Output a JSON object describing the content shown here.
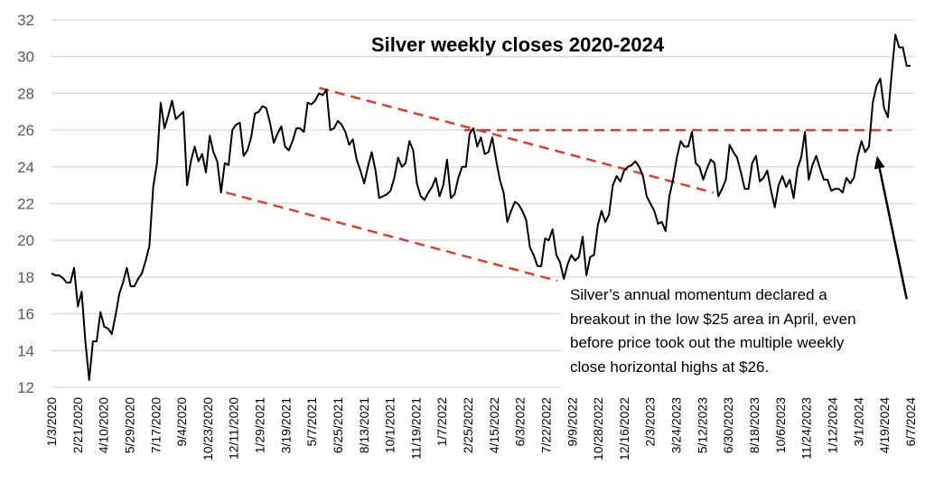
{
  "chart_data": {
    "type": "line",
    "title": "Silver weekly closes  2020-2024",
    "xlabel": "",
    "ylabel": "",
    "ylim": [
      12,
      32
    ],
    "yticks": [
      12,
      14,
      16,
      18,
      20,
      22,
      24,
      26,
      28,
      30,
      32
    ],
    "grid": true,
    "x_unit": "week index from 1/3/2020",
    "xlim": [
      0,
      232
    ],
    "xtick_labels": [
      "1/3/2020",
      "2/21/2020",
      "4/10/2020",
      "5/29/2020",
      "7/17/2020",
      "9/4/2020",
      "10/23/2020",
      "12/11/2020",
      "1/29/2021",
      "3/19/2021",
      "5/7/2021",
      "6/25/2021",
      "8/13/2021",
      "10/1/2021",
      "11/19/2021",
      "1/7/2022",
      "2/25/2022",
      "4/15/2022",
      "6/3/2022",
      "7/22/2022",
      "9/9/2022",
      "10/28/2022",
      "12/16/2022",
      "2/3/2023",
      "3/24/2023",
      "5/12/2023",
      "6/30/2023",
      "8/18/2023",
      "10/6/2023",
      "11/24/2023",
      "1/12/2024",
      "3/1/2024",
      "4/19/2024",
      "6/7/2024"
    ],
    "xtick_step_weeks": 7,
    "series": [
      {
        "name": "Silver weekly close",
        "color": "#000000",
        "values": [
          18.2,
          18.1,
          18.1,
          17.95,
          17.7,
          17.7,
          18.5,
          16.4,
          17.2,
          14.5,
          12.4,
          14.5,
          14.5,
          16.1,
          15.3,
          15.2,
          14.9,
          15.9,
          17.1,
          17.7,
          18.5,
          17.5,
          17.5,
          17.9,
          18.2,
          18.9,
          19.7,
          22.9,
          24.2,
          27.5,
          26.1,
          26.8,
          27.6,
          26.6,
          26.8,
          27.0,
          23.0,
          24.3,
          25.1,
          24.3,
          24.7,
          23.7,
          25.7,
          24.8,
          24.3,
          22.6,
          24.2,
          24.1,
          26.0,
          26.3,
          26.4,
          24.6,
          24.9,
          25.6,
          26.9,
          27.0,
          27.3,
          27.2,
          26.4,
          25.3,
          25.8,
          26.2,
          25.1,
          24.9,
          25.4,
          26.1,
          26.1,
          25.9,
          27.5,
          27.4,
          27.6,
          28.0,
          27.9,
          28.2,
          26.0,
          26.1,
          26.5,
          26.3,
          25.9,
          25.2,
          25.5,
          24.4,
          23.8,
          23.1,
          24.0,
          24.8,
          23.8,
          22.3,
          22.4,
          22.5,
          22.7,
          23.4,
          24.5,
          24.0,
          24.2,
          25.4,
          24.9,
          23.1,
          22.4,
          22.2,
          22.6,
          22.9,
          23.4,
          22.4,
          23.0,
          24.4,
          22.3,
          22.5,
          23.4,
          24.0,
          24.0,
          25.8,
          26.1,
          25.1,
          25.6,
          24.7,
          24.8,
          25.6,
          24.4,
          23.3,
          22.6,
          21.0,
          21.6,
          22.1,
          21.95,
          21.6,
          21.1,
          19.6,
          19.2,
          18.6,
          18.6,
          20.1,
          20.0,
          20.6,
          19.2,
          18.8,
          17.9,
          18.7,
          19.2,
          18.9,
          19.1,
          20.2,
          18.1,
          19.1,
          19.2,
          20.8,
          21.6,
          21.0,
          21.4,
          23.0,
          23.5,
          23.2,
          23.8,
          24.0,
          24.1,
          24.3,
          24.0,
          23.5,
          22.4,
          22.0,
          21.6,
          20.9,
          21.0,
          20.5,
          22.4,
          23.3,
          24.5,
          25.4,
          25.1,
          25.1,
          25.9,
          24.2,
          24.0,
          23.3,
          23.9,
          24.4,
          24.2,
          22.4,
          22.8,
          23.3,
          25.2,
          24.8,
          24.5,
          23.7,
          22.8,
          22.8,
          24.2,
          24.6,
          23.2,
          23.4,
          23.8,
          22.7,
          21.8,
          23.0,
          23.5,
          22.9,
          23.3,
          22.3,
          23.9,
          24.5,
          25.9,
          23.3,
          24.1,
          24.6,
          23.9,
          23.3,
          23.3,
          22.7,
          22.8,
          22.8,
          22.6,
          23.4,
          23.1,
          23.4,
          24.6,
          25.4,
          24.8,
          25.1,
          27.5,
          28.4,
          28.8,
          27.2,
          26.7,
          29.0,
          31.2,
          30.5,
          30.5,
          29.5,
          29.5
        ]
      }
    ],
    "trendlines": [
      {
        "name": "upper downtrend line",
        "color": "#e03c31",
        "style": "dashed",
        "from": [
          72,
          28.3
        ],
        "to": [
          178,
          22.6
        ]
      },
      {
        "name": "lower downtrend line",
        "color": "#e03c31",
        "style": "dashed",
        "from": [
          47,
          22.6
        ],
        "to": [
          136,
          17.8
        ]
      },
      {
        "name": "horizontal resistance",
        "color": "#e03c31",
        "style": "dashed",
        "from": [
          111,
          26.0
        ],
        "to": [
          226,
          26.0
        ]
      }
    ],
    "annotations": [
      {
        "type": "text",
        "lines": [
          "Silver’s annual momentum declared a",
          "breakout in the low $25 area in April, even",
          "before price took out the multiple  weekly",
          "close horizontal highs at $26."
        ]
      },
      {
        "type": "arrow",
        "color": "#000000",
        "from": [
          230,
          16.8
        ],
        "to": [
          222,
          24.6
        ]
      }
    ]
  }
}
